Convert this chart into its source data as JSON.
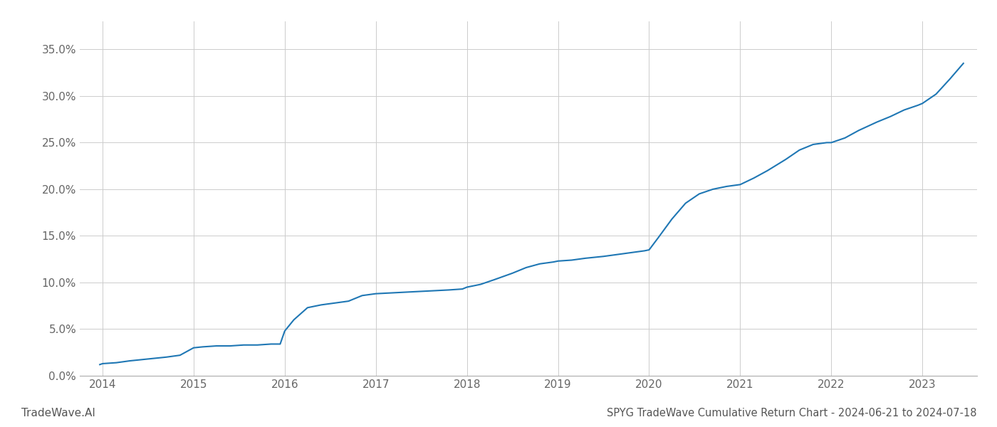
{
  "title": "SPYG TradeWave Cumulative Return Chart - 2024-06-21 to 2024-07-18",
  "watermark": "TradeWave.AI",
  "line_color": "#1f77b4",
  "background_color": "#ffffff",
  "grid_color": "#cccccc",
  "x_values": [
    2013.97,
    2014.0,
    2014.15,
    2014.3,
    2014.5,
    2014.7,
    2014.85,
    2015.0,
    2015.1,
    2015.25,
    2015.4,
    2015.55,
    2015.7,
    2015.85,
    2015.95,
    2016.0,
    2016.1,
    2016.25,
    2016.4,
    2016.55,
    2016.7,
    2016.85,
    2017.0,
    2017.2,
    2017.4,
    2017.6,
    2017.8,
    2017.95,
    2018.0,
    2018.15,
    2018.3,
    2018.5,
    2018.65,
    2018.8,
    2018.95,
    2019.0,
    2019.15,
    2019.3,
    2019.5,
    2019.65,
    2019.8,
    2019.95,
    2020.0,
    2020.1,
    2020.25,
    2020.4,
    2020.55,
    2020.7,
    2020.85,
    2021.0,
    2021.15,
    2021.3,
    2021.5,
    2021.65,
    2021.8,
    2021.95,
    2022.0,
    2022.15,
    2022.3,
    2022.5,
    2022.65,
    2022.8,
    2022.95,
    2023.0,
    2023.15,
    2023.3,
    2023.45
  ],
  "y_values": [
    0.012,
    0.013,
    0.014,
    0.016,
    0.018,
    0.02,
    0.022,
    0.03,
    0.031,
    0.032,
    0.032,
    0.033,
    0.033,
    0.034,
    0.034,
    0.048,
    0.06,
    0.073,
    0.076,
    0.078,
    0.08,
    0.086,
    0.088,
    0.089,
    0.09,
    0.091,
    0.092,
    0.093,
    0.095,
    0.098,
    0.103,
    0.11,
    0.116,
    0.12,
    0.122,
    0.123,
    0.124,
    0.126,
    0.128,
    0.13,
    0.132,
    0.134,
    0.135,
    0.148,
    0.168,
    0.185,
    0.195,
    0.2,
    0.203,
    0.205,
    0.212,
    0.22,
    0.232,
    0.242,
    0.248,
    0.25,
    0.25,
    0.255,
    0.263,
    0.272,
    0.278,
    0.285,
    0.29,
    0.292,
    0.302,
    0.318,
    0.335
  ],
  "ylim": [
    0.0,
    0.38
  ],
  "xlim": [
    2013.75,
    2023.6
  ],
  "yticks": [
    0.0,
    0.05,
    0.1,
    0.15,
    0.2,
    0.25,
    0.3,
    0.35
  ],
  "ytick_labels": [
    "0.0%",
    "5.0%",
    "10.0%",
    "15.0%",
    "20.0%",
    "25.0%",
    "30.0%",
    "35.0%"
  ],
  "xtick_labels": [
    "2014",
    "2015",
    "2016",
    "2017",
    "2018",
    "2019",
    "2020",
    "2021",
    "2022",
    "2023"
  ],
  "xtick_positions": [
    2014,
    2015,
    2016,
    2017,
    2018,
    2019,
    2020,
    2021,
    2022,
    2023
  ],
  "line_width": 1.5,
  "title_fontsize": 10.5,
  "tick_fontsize": 11,
  "watermark_fontsize": 11
}
